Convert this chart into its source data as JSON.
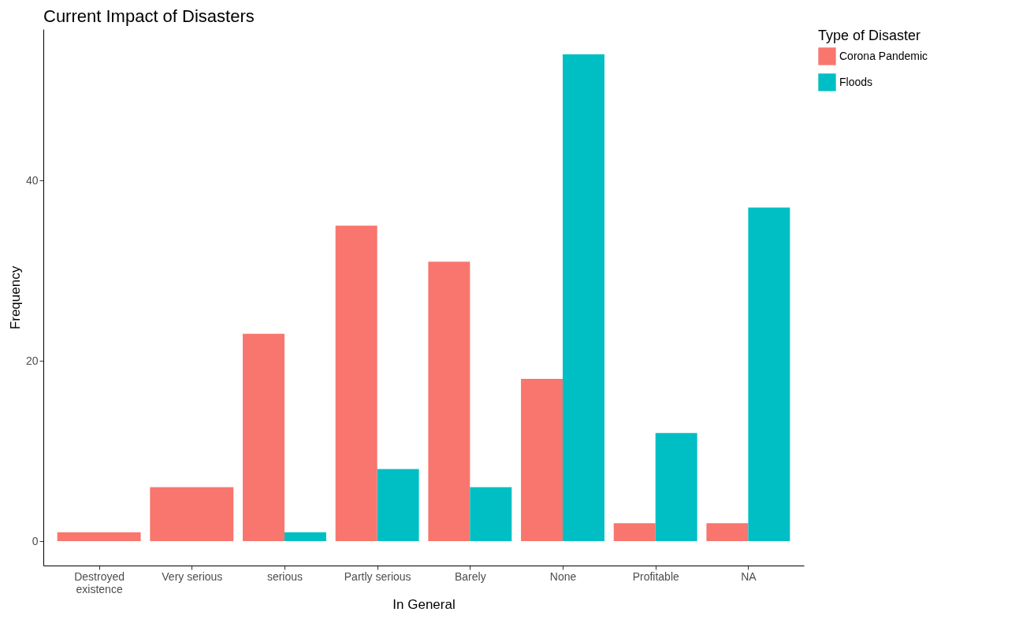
{
  "chart_data": {
    "type": "bar",
    "title": "Current Impact of Disasters",
    "xlabel": "In General",
    "ylabel": "Frequency",
    "legend_title": "Type of Disaster",
    "categories": [
      "Destroyed\nexistence",
      "Very serious",
      "serious",
      "Partly serious",
      "Barely",
      "None",
      "Profitable",
      "NA"
    ],
    "series": [
      {
        "name": "Corona Pandemic",
        "color": "#f8766d",
        "values": [
          1,
          6,
          23,
          35,
          31,
          18,
          2,
          2
        ]
      },
      {
        "name": "Floods",
        "color": "#00bfc4",
        "values": [
          null,
          null,
          1,
          8,
          6,
          54,
          12,
          37
        ]
      }
    ],
    "ylim": [
      -2.7,
      56.8
    ],
    "yticks": [
      0,
      20,
      40
    ],
    "grid": false,
    "legend": "right"
  }
}
